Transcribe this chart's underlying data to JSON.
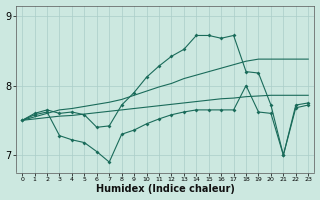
{
  "xlabel": "Humidex (Indice chaleur)",
  "background_color": "#cce8e0",
  "grid_color": "#aacec8",
  "line_color": "#1a6b5a",
  "x": [
    0,
    1,
    2,
    3,
    4,
    5,
    6,
    7,
    8,
    9,
    10,
    11,
    12,
    13,
    14,
    15,
    16,
    17,
    18,
    19,
    20,
    21,
    22,
    23
  ],
  "line_upper_jagged": [
    7.5,
    7.6,
    7.65,
    7.6,
    7.62,
    7.58,
    7.4,
    7.42,
    7.72,
    7.9,
    8.12,
    8.28,
    8.42,
    8.52,
    8.72,
    8.72,
    8.68,
    8.72,
    8.2,
    8.18,
    7.72,
    7.0,
    7.72,
    7.75
  ],
  "line_upper_trend": [
    7.5,
    7.55,
    7.6,
    7.65,
    7.67,
    7.7,
    7.73,
    7.76,
    7.8,
    7.86,
    7.92,
    7.98,
    8.03,
    8.1,
    8.15,
    8.2,
    8.25,
    8.3,
    8.35,
    8.38,
    8.38,
    8.38,
    8.38,
    8.38
  ],
  "line_lower_jagged": [
    7.5,
    7.58,
    7.62,
    7.28,
    7.22,
    7.18,
    7.05,
    6.9,
    7.3,
    7.36,
    7.45,
    7.52,
    7.58,
    7.62,
    7.65,
    7.65,
    7.65,
    7.65,
    8.0,
    7.62,
    7.6,
    7.0,
    7.68,
    7.72
  ],
  "line_lower_trend": [
    7.5,
    7.52,
    7.54,
    7.56,
    7.57,
    7.59,
    7.61,
    7.63,
    7.65,
    7.67,
    7.69,
    7.71,
    7.73,
    7.75,
    7.77,
    7.79,
    7.81,
    7.82,
    7.84,
    7.85,
    7.86,
    7.86,
    7.86,
    7.86
  ],
  "ylim": [
    6.75,
    9.15
  ],
  "yticks": [
    7,
    8,
    9
  ],
  "xticks": [
    0,
    1,
    2,
    3,
    4,
    5,
    6,
    7,
    8,
    9,
    10,
    11,
    12,
    13,
    14,
    15,
    16,
    17,
    18,
    19,
    20,
    21,
    22,
    23
  ]
}
